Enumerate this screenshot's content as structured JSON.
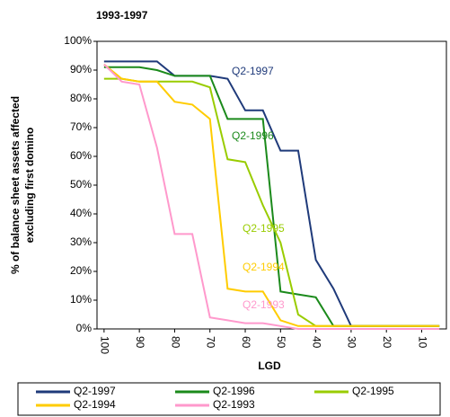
{
  "chart_data": {
    "type": "line",
    "title": "1993-1997",
    "y_label_lines": [
      "% of balance sheet assets affected",
      "excluding first domino"
    ],
    "x_label": "LGD",
    "x": [
      100,
      95,
      90,
      85,
      80,
      75,
      70,
      65,
      60,
      55,
      50,
      45,
      40,
      35,
      30,
      25,
      20,
      15,
      10,
      5
    ],
    "xlim": [
      102,
      3
    ],
    "xticks": [
      100,
      90,
      80,
      70,
      60,
      50,
      40,
      30,
      20,
      10
    ],
    "ylim": [
      0,
      100
    ],
    "yticks": [
      {
        "value": 0,
        "label": "0%"
      },
      {
        "value": 10,
        "label": "10%"
      },
      {
        "value": 20,
        "label": "20%"
      },
      {
        "value": 30,
        "label": "30%"
      },
      {
        "value": 40,
        "label": "40%"
      },
      {
        "value": 50,
        "label": "50%"
      },
      {
        "value": 60,
        "label": "60%"
      },
      {
        "value": 70,
        "label": "70%"
      },
      {
        "value": 80,
        "label": "80%"
      },
      {
        "value": 90,
        "label": "90%"
      },
      {
        "value": 100,
        "label": "100%"
      }
    ],
    "legend": "bottom",
    "series": [
      {
        "name": "Q2-1997",
        "color": "#1f3a7a",
        "values": [
          93,
          93,
          93,
          93,
          88,
          88,
          88,
          87,
          76,
          76,
          62,
          62,
          24,
          14,
          1,
          1,
          1,
          1,
          1,
          1
        ]
      },
      {
        "name": "Q2-1996",
        "color": "#1b8a1b",
        "values": [
          91,
          91,
          91,
          90,
          88,
          88,
          88,
          73,
          73,
          73,
          13,
          12,
          11,
          1,
          1,
          1,
          1,
          1,
          1,
          1
        ]
      },
      {
        "name": "Q2-1995",
        "color": "#99cc00",
        "values": [
          87,
          87,
          86,
          86,
          86,
          86,
          84,
          59,
          58,
          43,
          30,
          5,
          1,
          1,
          1,
          1,
          1,
          1,
          1,
          1
        ]
      },
      {
        "name": "Q2-1994",
        "color": "#ffcc00",
        "values": [
          92,
          87,
          86,
          86,
          79,
          78,
          73,
          14,
          13,
          13,
          3,
          1,
          1,
          1,
          1,
          1,
          1,
          1,
          1,
          1
        ]
      },
      {
        "name": "Q2-1993",
        "color": "#ff99cc",
        "values": [
          92,
          86,
          85,
          63,
          33,
          33,
          4,
          3,
          2,
          2,
          1,
          0,
          0,
          0,
          0,
          0,
          0,
          0,
          0,
          0
        ]
      }
    ],
    "annotations": [
      "Q2-1997",
      "Q2-1996",
      "Q2-1995",
      "Q2-1994",
      "Q2-1993"
    ]
  }
}
